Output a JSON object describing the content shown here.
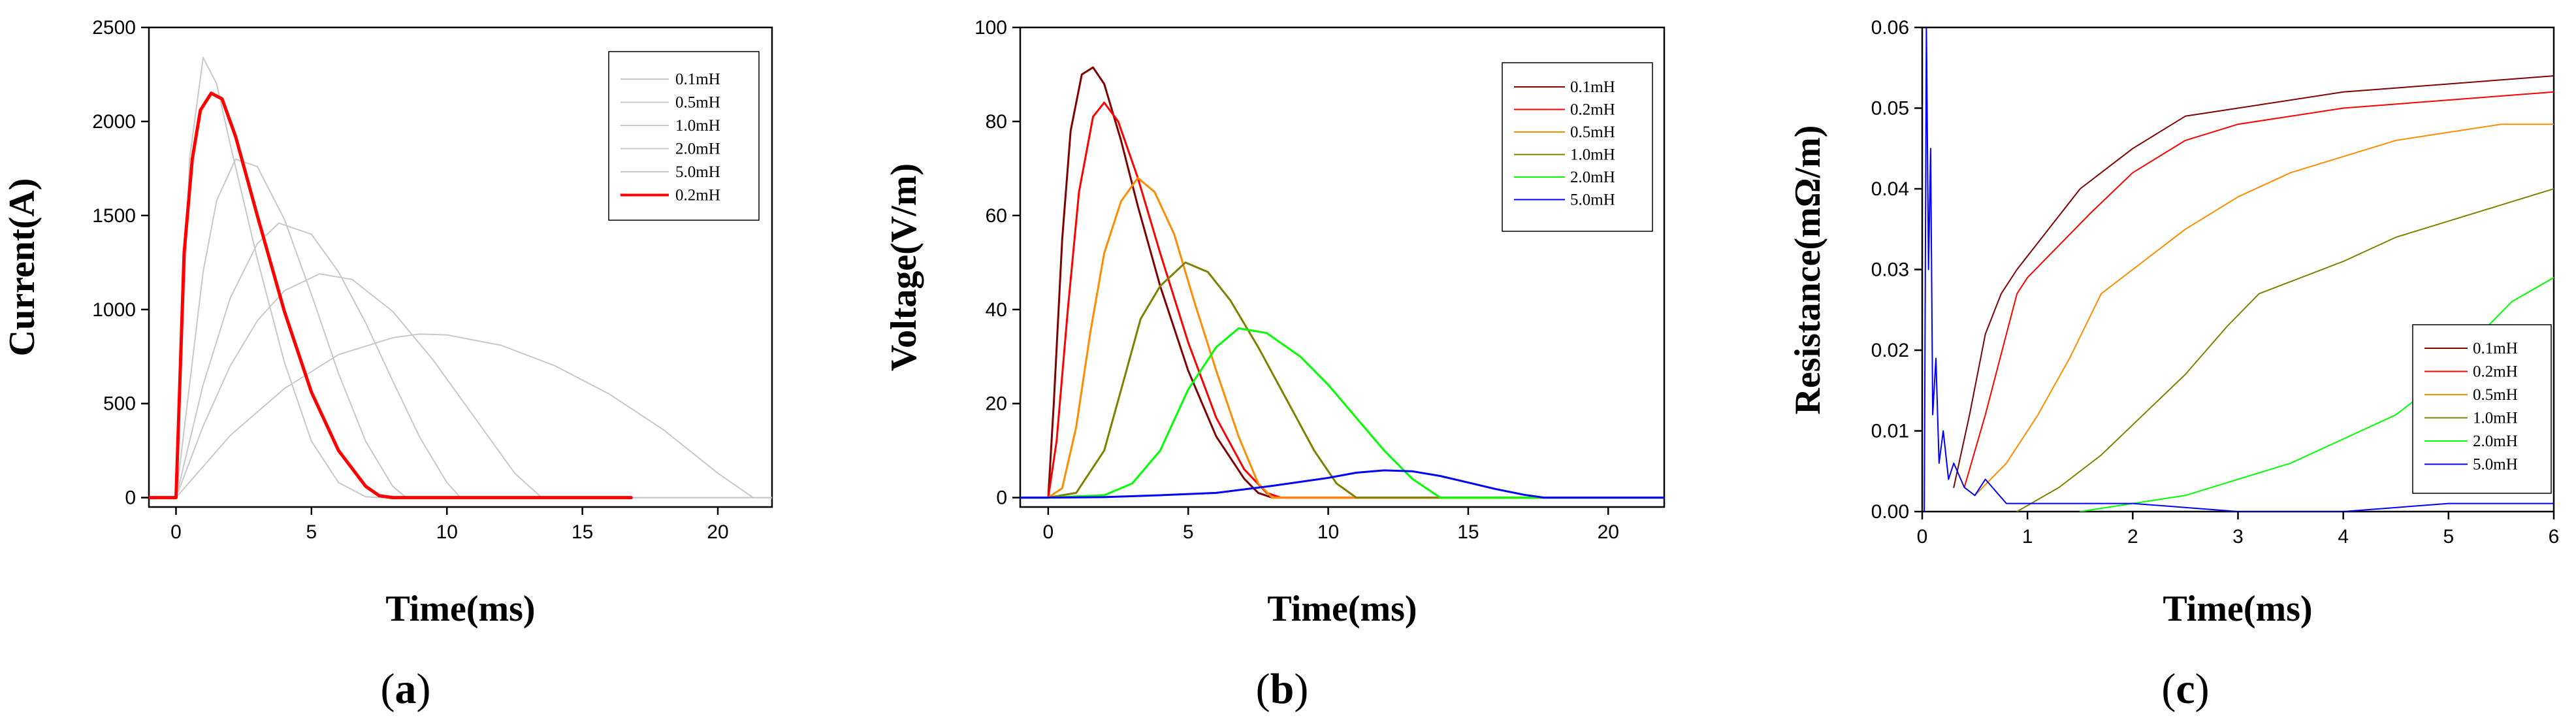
{
  "chart_data": [
    {
      "type": "line",
      "panel_label": "a",
      "xlabel": "Time(ms)",
      "ylabel": "Current(A)",
      "xlim": [
        -1,
        22
      ],
      "ylim": [
        -50,
        2500
      ],
      "xticks": [
        0,
        5,
        10,
        15,
        20
      ],
      "yticks": [
        0,
        500,
        1000,
        1500,
        2000,
        2500
      ],
      "legend_position": "top-right",
      "series": [
        {
          "name": "0.1mH",
          "color": "#c8c8c8",
          "width": 2,
          "x": [
            -1,
            0,
            0.5,
            1.0,
            1.5,
            2.0,
            3.0,
            4.0,
            5.0,
            6.0,
            7.0,
            7.5,
            22
          ],
          "y": [
            0,
            0,
            1800,
            2340,
            2200,
            1880,
            1270,
            720,
            300,
            80,
            5,
            0,
            0
          ]
        },
        {
          "name": "0.5mH",
          "color": "#c8c8c8",
          "width": 2,
          "x": [
            -1,
            0,
            0.5,
            1.0,
            1.5,
            2.2,
            3.0,
            4.0,
            5.0,
            6.0,
            7.0,
            8.0,
            8.5,
            22
          ],
          "y": [
            0,
            0,
            600,
            1200,
            1580,
            1800,
            1760,
            1480,
            1080,
            660,
            300,
            60,
            0,
            0
          ]
        },
        {
          "name": "1.0mH",
          "color": "#c8c8c8",
          "width": 2,
          "x": [
            -1,
            0,
            1,
            2,
            3,
            3.8,
            5,
            6,
            7,
            8,
            9,
            10,
            10.5,
            22
          ],
          "y": [
            0,
            0,
            600,
            1060,
            1350,
            1460,
            1400,
            1200,
            930,
            620,
            320,
            80,
            0,
            0
          ]
        },
        {
          "name": "2.0mH",
          "color": "#c8c8c8",
          "width": 2,
          "x": [
            -1,
            0,
            1,
            2,
            3,
            4,
            5.3,
            6.5,
            8,
            9.5,
            11,
            12.5,
            13.5,
            22
          ],
          "y": [
            0,
            0,
            380,
            700,
            940,
            1100,
            1190,
            1160,
            990,
            730,
            430,
            130,
            0,
            0
          ]
        },
        {
          "name": "5.0mH",
          "color": "#c8c8c8",
          "width": 2,
          "x": [
            -1,
            0,
            2,
            4,
            6,
            8,
            9,
            10,
            12,
            14,
            16,
            18,
            20,
            21.3,
            22
          ],
          "y": [
            0,
            0,
            330,
            580,
            760,
            850,
            870,
            865,
            810,
            700,
            550,
            360,
            130,
            0,
            0
          ]
        },
        {
          "name": "0.2mH",
          "color": "#ff0000",
          "width": 5,
          "x": [
            -1,
            0,
            0.3,
            0.6,
            0.9,
            1.3,
            1.7,
            2.2,
            3.0,
            4.0,
            5.0,
            6.0,
            7.0,
            7.5,
            8.0,
            16.8
          ],
          "y": [
            0,
            0,
            1300,
            1800,
            2060,
            2150,
            2120,
            1920,
            1500,
            990,
            560,
            250,
            60,
            10,
            0,
            0
          ]
        }
      ]
    },
    {
      "type": "line",
      "panel_label": "b",
      "xlabel": "Time(ms)",
      "ylabel": "Voltage(V/m)",
      "xlim": [
        -1,
        22
      ],
      "ylim": [
        -2,
        100
      ],
      "xticks": [
        0,
        5,
        10,
        15,
        20
      ],
      "yticks": [
        0,
        20,
        40,
        60,
        80,
        100
      ],
      "legend_position": "top-right",
      "series": [
        {
          "name": "0.1mH",
          "color": "#800000",
          "width": 3,
          "x": [
            -1,
            0,
            0.2,
            0.5,
            0.8,
            1.2,
            1.6,
            2.0,
            2.6,
            3.2,
            4.0,
            5.0,
            6.0,
            7.0,
            7.5,
            8.0,
            22
          ],
          "y": [
            0,
            0,
            20,
            55,
            78,
            90,
            91.5,
            88,
            76,
            62,
            45,
            27,
            13,
            4,
            1,
            0,
            0
          ]
        },
        {
          "name": "0.2mH",
          "color": "#ff0000",
          "width": 3,
          "x": [
            -1,
            0,
            0.3,
            0.7,
            1.1,
            1.6,
            2.0,
            2.5,
            3.2,
            4.0,
            5.0,
            6.0,
            7.0,
            7.8,
            8.3,
            22
          ],
          "y": [
            0,
            0,
            12,
            40,
            65,
            81,
            84,
            80,
            68,
            52,
            33,
            17,
            6,
            1,
            0,
            0
          ]
        },
        {
          "name": "0.5mH",
          "color": "#ff8c00",
          "width": 3,
          "x": [
            -1,
            0,
            0.5,
            1.0,
            1.5,
            2.0,
            2.6,
            3.2,
            3.8,
            4.5,
            5.2,
            6.0,
            6.8,
            7.5,
            8.0,
            22
          ],
          "y": [
            0,
            0,
            2,
            15,
            35,
            52,
            63,
            68,
            65,
            56,
            42,
            27,
            13,
            3,
            0,
            0
          ]
        },
        {
          "name": "1.0mH",
          "color": "#808000",
          "width": 3,
          "x": [
            -1,
            0,
            1,
            2,
            2.7,
            3.3,
            4.0,
            4.9,
            5.7,
            6.5,
            7.5,
            8.5,
            9.5,
            10.3,
            11.0,
            22
          ],
          "y": [
            0,
            0,
            1,
            10,
            25,
            38,
            45,
            50,
            48,
            42,
            32,
            21,
            10,
            3,
            0,
            0
          ]
        },
        {
          "name": "2.0mH",
          "color": "#00ff00",
          "width": 3,
          "x": [
            -1,
            0,
            2,
            3,
            4,
            5,
            6,
            6.8,
            7.8,
            9,
            10,
            11,
            12,
            13,
            14,
            22
          ],
          "y": [
            0,
            0,
            0.5,
            3,
            10,
            23,
            32,
            36,
            35,
            30,
            24,
            17,
            10,
            4,
            0,
            0
          ]
        },
        {
          "name": "5.0mH",
          "color": "#0000ff",
          "width": 3,
          "x": [
            -1,
            0,
            2,
            4,
            6,
            8,
            10,
            11,
            12,
            13,
            14,
            15,
            16,
            17,
            17.7,
            22
          ],
          "y": [
            0,
            0,
            0.1,
            0.5,
            1,
            2.5,
            4.2,
            5.3,
            5.8,
            5.6,
            4.6,
            3.2,
            1.8,
            0.6,
            0,
            0
          ]
        }
      ]
    },
    {
      "type": "line",
      "panel_label": "c",
      "xlabel": "Time(ms)",
      "ylabel": "Resistance(mΩ/m)",
      "xlim": [
        0,
        6
      ],
      "ylim": [
        0,
        0.06
      ],
      "xticks": [
        0,
        1,
        2,
        3,
        4,
        5,
        6
      ],
      "yticks": [
        0.0,
        0.01,
        0.02,
        0.03,
        0.04,
        0.05,
        0.06
      ],
      "legend_position": "bottom-right",
      "series": [
        {
          "name": "0.1mH",
          "color": "#800000",
          "width": 2,
          "x": [
            0.3,
            0.45,
            0.6,
            0.75,
            0.9,
            1.2,
            1.5,
            2.0,
            2.5,
            3.0,
            4.0,
            5.0,
            6.0
          ],
          "y": [
            0.003,
            0.012,
            0.022,
            0.027,
            0.03,
            0.035,
            0.04,
            0.045,
            0.049,
            0.05,
            0.052,
            0.053,
            0.054
          ]
        },
        {
          "name": "0.2mH",
          "color": "#ff0000",
          "width": 2,
          "x": [
            0.4,
            0.6,
            0.8,
            0.9,
            1.0,
            1.3,
            1.6,
            2.0,
            2.5,
            3.0,
            4.0,
            5.0,
            6.0
          ],
          "y": [
            0.003,
            0.012,
            0.022,
            0.027,
            0.029,
            0.033,
            0.037,
            0.042,
            0.046,
            0.048,
            0.05,
            0.051,
            0.052
          ]
        },
        {
          "name": "0.5mH",
          "color": "#ff8c00",
          "width": 2,
          "x": [
            0.5,
            0.8,
            1.1,
            1.4,
            1.7,
            2.0,
            2.5,
            3.0,
            3.5,
            4.0,
            4.5,
            5.0,
            5.5,
            6.0
          ],
          "y": [
            0.002,
            0.006,
            0.012,
            0.019,
            0.027,
            0.03,
            0.035,
            0.039,
            0.042,
            0.044,
            0.046,
            0.047,
            0.048,
            0.048
          ]
        },
        {
          "name": "1.0mH",
          "color": "#808000",
          "width": 2,
          "x": [
            0.9,
            1.3,
            1.7,
            2.1,
            2.5,
            2.9,
            3.2,
            3.6,
            4.0,
            4.5,
            5.0,
            5.5,
            6.0
          ],
          "y": [
            0.0,
            0.003,
            0.007,
            0.012,
            0.017,
            0.023,
            0.027,
            0.029,
            0.031,
            0.034,
            0.036,
            0.038,
            0.04
          ]
        },
        {
          "name": "2.0mH",
          "color": "#00ff00",
          "width": 2,
          "x": [
            1.5,
            2.0,
            2.5,
            3.0,
            3.5,
            4.0,
            4.5,
            5.0,
            5.3,
            5.6,
            6.0
          ],
          "y": [
            0.0,
            0.001,
            0.002,
            0.004,
            0.006,
            0.009,
            0.012,
            0.017,
            0.022,
            0.026,
            0.029
          ]
        },
        {
          "name": "5.0mH",
          "color": "#0000ff",
          "width": 2,
          "x": [
            0.02,
            0.04,
            0.06,
            0.08,
            0.1,
            0.13,
            0.16,
            0.2,
            0.25,
            0.3,
            0.4,
            0.5,
            0.6,
            0.8,
            1.0,
            2.0,
            3.0,
            4.0,
            5.0,
            6.0
          ],
          "y": [
            0.0,
            0.06,
            0.03,
            0.045,
            0.012,
            0.019,
            0.006,
            0.01,
            0.004,
            0.006,
            0.003,
            0.002,
            0.004,
            0.001,
            0.001,
            0.001,
            0.0,
            0.0,
            0.001,
            0.001
          ]
        }
      ]
    }
  ]
}
